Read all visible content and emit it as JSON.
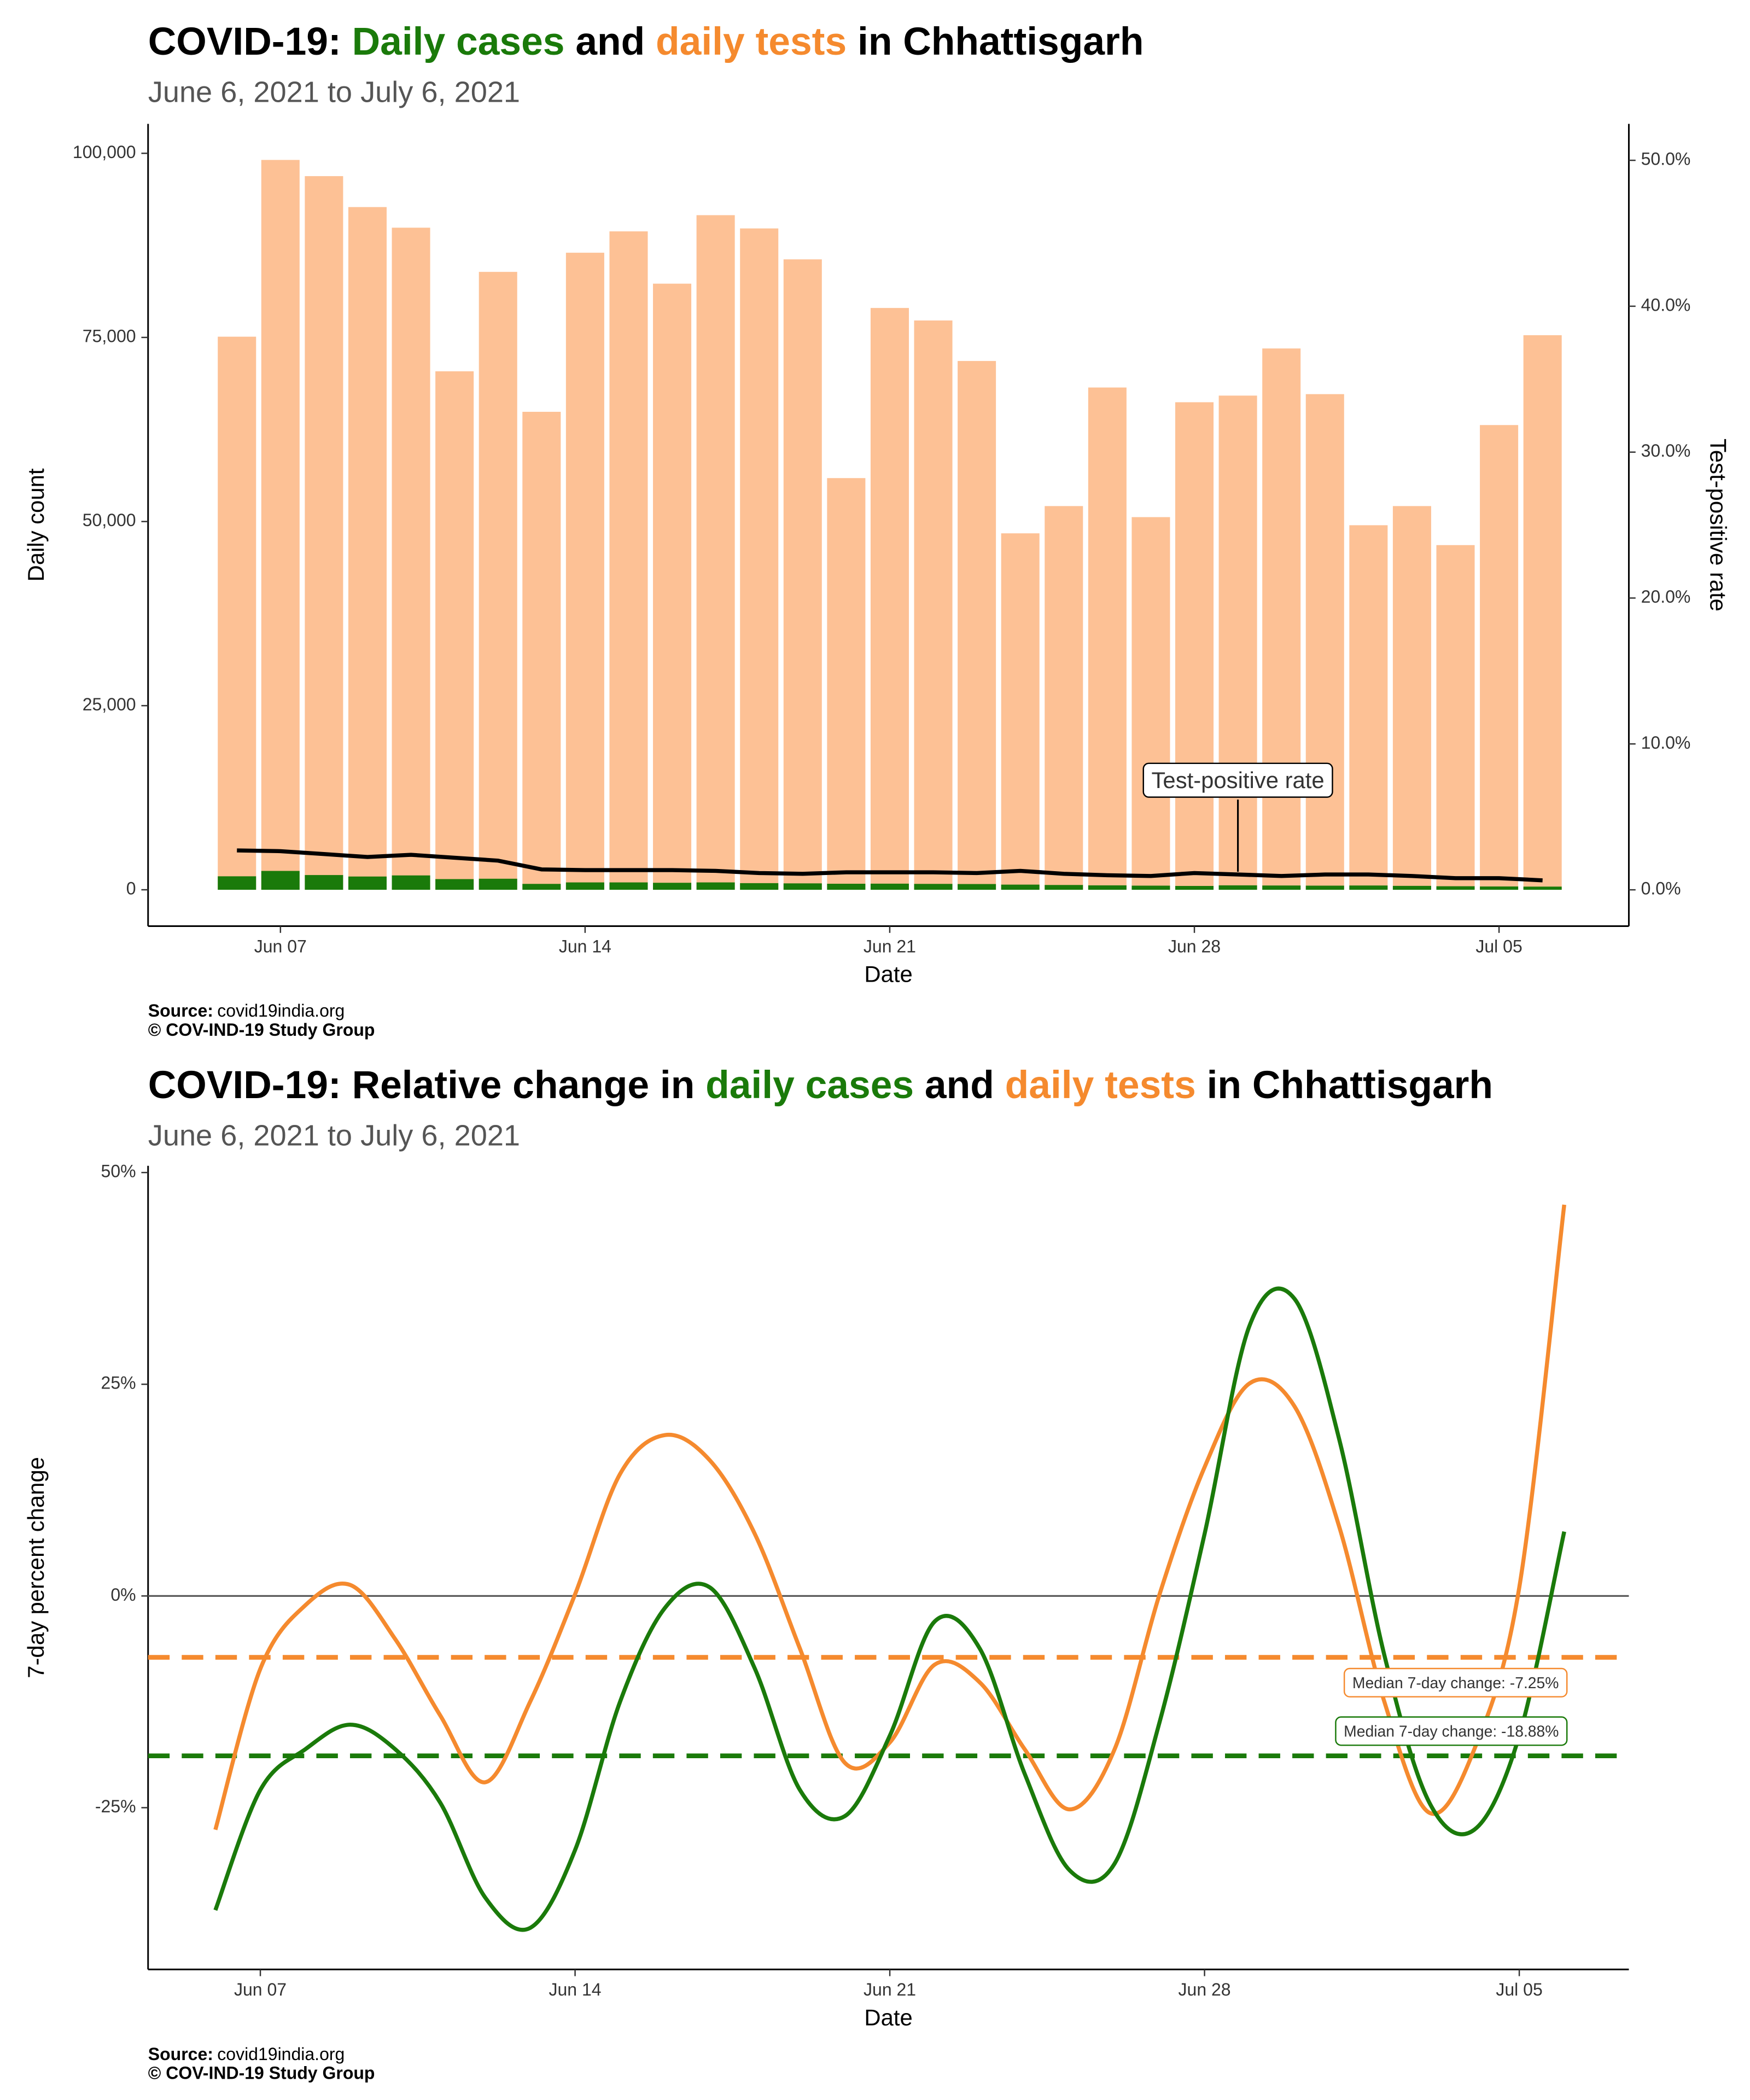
{
  "chart_data": [
    {
      "type": "bar",
      "title": [
        "COVID-19: ",
        "Daily cases",
        " and ",
        "daily tests",
        " in Chhattisgarh"
      ],
      "title_colors": [
        "#000000",
        "#1a7a0a",
        "#000000",
        "#f58a2e",
        "#000000"
      ],
      "subtitle": "June  6, 2021 to July  6, 2021",
      "x_label": "Date",
      "y_label": "Daily count",
      "y2_label": "Test-positive rate",
      "categories": [
        null,
        "Jun 07",
        null,
        null,
        null,
        null,
        null,
        null,
        "Jun 14",
        null,
        null,
        null,
        null,
        null,
        null,
        "Jun 21",
        null,
        null,
        null,
        null,
        null,
        null,
        "Jun 28",
        null,
        null,
        null,
        null,
        null,
        null,
        "Jul 05",
        null
      ],
      "series": [
        {
          "name": "daily tests",
          "type": "bar",
          "color": "#fdc195",
          "values": [
            75100,
            99100,
            96900,
            92700,
            89900,
            70400,
            83900,
            64900,
            86500,
            89400,
            82300,
            91600,
            89800,
            85600,
            55900,
            79000,
            77300,
            71800,
            48400,
            52100,
            68200,
            50600,
            66200,
            67100,
            73500,
            67300,
            49500,
            52100,
            46800,
            63100,
            75300
          ]
        },
        {
          "name": "Daily cases",
          "type": "bar",
          "color": "#1a7a0a",
          "values": [
            1830,
            2560,
            2000,
            1800,
            1950,
            1450,
            1500,
            800,
            1000,
            1000,
            950,
            1000,
            900,
            870,
            820,
            830,
            800,
            780,
            700,
            650,
            600,
            560,
            520,
            600,
            580,
            560,
            580,
            530,
            480,
            450,
            430
          ]
        },
        {
          "name": "Test-positive rate",
          "type": "line",
          "axis": "y2",
          "color": "#000000",
          "values": [
            2.7,
            2.65,
            2.45,
            2.25,
            2.4,
            2.2,
            2.0,
            1.4,
            1.35,
            1.35,
            1.35,
            1.3,
            1.15,
            1.1,
            1.2,
            1.2,
            1.2,
            1.15,
            1.3,
            1.1,
            1.0,
            0.95,
            1.15,
            1.05,
            0.95,
            1.05,
            1.05,
            0.95,
            0.8,
            0.8,
            0.65
          ]
        }
      ],
      "annotation": "Test-positive rate",
      "ylim": [
        -4940,
        104000
      ],
      "yticks": [
        0,
        {
          "value": 25000,
          "label": "25,000"
        },
        {
          "value": 50000,
          "label": "50,000"
        },
        {
          "value": 75000,
          "label": "75,000"
        },
        {
          "value": 100000,
          "label": "100,000"
        }
      ],
      "y2lim": [
        -2.49,
        52.5
      ],
      "y2ticks": [
        {
          "value": 0,
          "label": "0.0%"
        },
        {
          "value": 10,
          "label": "10.0%"
        },
        {
          "value": 20,
          "label": "20.0%"
        },
        {
          "value": 30,
          "label": "30.0%"
        },
        {
          "value": 40,
          "label": "40.0%"
        },
        {
          "value": 50,
          "label": "50.0%"
        }
      ],
      "grid": false,
      "source_label": "Source:",
      "source": "covid19india.org",
      "copyright": "© COV-IND-19 Study Group"
    },
    {
      "type": "line",
      "title": [
        "COVID-19: Relative change in ",
        "daily cases",
        " and ",
        "daily tests",
        " in Chhattisgarh"
      ],
      "title_colors": [
        "#000000",
        "#1a7a0a",
        "#000000",
        "#f58a2e",
        "#000000"
      ],
      "subtitle": "June  6, 2021 to July  6, 2021",
      "x_label": "Date",
      "y_label": "7-day percent change",
      "categories": [
        null,
        "Jun 07",
        null,
        null,
        null,
        null,
        null,
        null,
        "Jun 14",
        null,
        null,
        null,
        null,
        null,
        null,
        "Jun 21",
        null,
        null,
        null,
        null,
        null,
        null,
        "Jun 28",
        null,
        null,
        null,
        null,
        null,
        null,
        "Jul 05",
        null
      ],
      "series": [
        {
          "name": "daily tests",
          "color": "#f58a2e",
          "values": [
            -27.6,
            -8.6,
            -1.1,
            1.3,
            -5.1,
            -14.1,
            -22.0,
            -12.5,
            0.2,
            14.4,
            19.0,
            16.0,
            7.3,
            -6.2,
            -19.7,
            -17.3,
            -8.1,
            -10.2,
            -18.1,
            -25.2,
            -18.1,
            0.2,
            15.2,
            25.1,
            22.4,
            8.1,
            -12.5,
            -25.6,
            -18.1,
            1.0,
            46.2
          ]
        },
        {
          "name": "daily cases",
          "color": "#1a7a0a",
          "values": [
            -37.1,
            -22.9,
            -18.1,
            -15.2,
            -18.1,
            -24.4,
            -35.6,
            -39.2,
            -30.0,
            -12.5,
            -1.4,
            1.0,
            -8.6,
            -22.9,
            -26.0,
            -16.5,
            -3.0,
            -6.2,
            -21.0,
            -32.4,
            -31.6,
            -14.9,
            7.3,
            31.9,
            35.1,
            18.4,
            -7.0,
            -24.4,
            -27.6,
            -16.5,
            7.6
          ]
        }
      ],
      "medians": [
        {
          "value": -7.25,
          "label": "Median 7-day change: -7.25%",
          "color": "#f58a2e"
        },
        {
          "value": -18.88,
          "label": "Median 7-day change: -18.88%",
          "color": "#1a7a0a"
        }
      ],
      "ylim": [
        -44.1,
        50.8
      ],
      "yticks": [
        {
          "value": -25,
          "label": "-25%"
        },
        {
          "value": 0,
          "label": "0%"
        },
        {
          "value": 25,
          "label": "25%"
        },
        {
          "value": 50,
          "label": "50%"
        }
      ],
      "grid": false,
      "source_label": "Source:",
      "source": "covid19india.org",
      "copyright": "© COV-IND-19 Study Group"
    }
  ]
}
